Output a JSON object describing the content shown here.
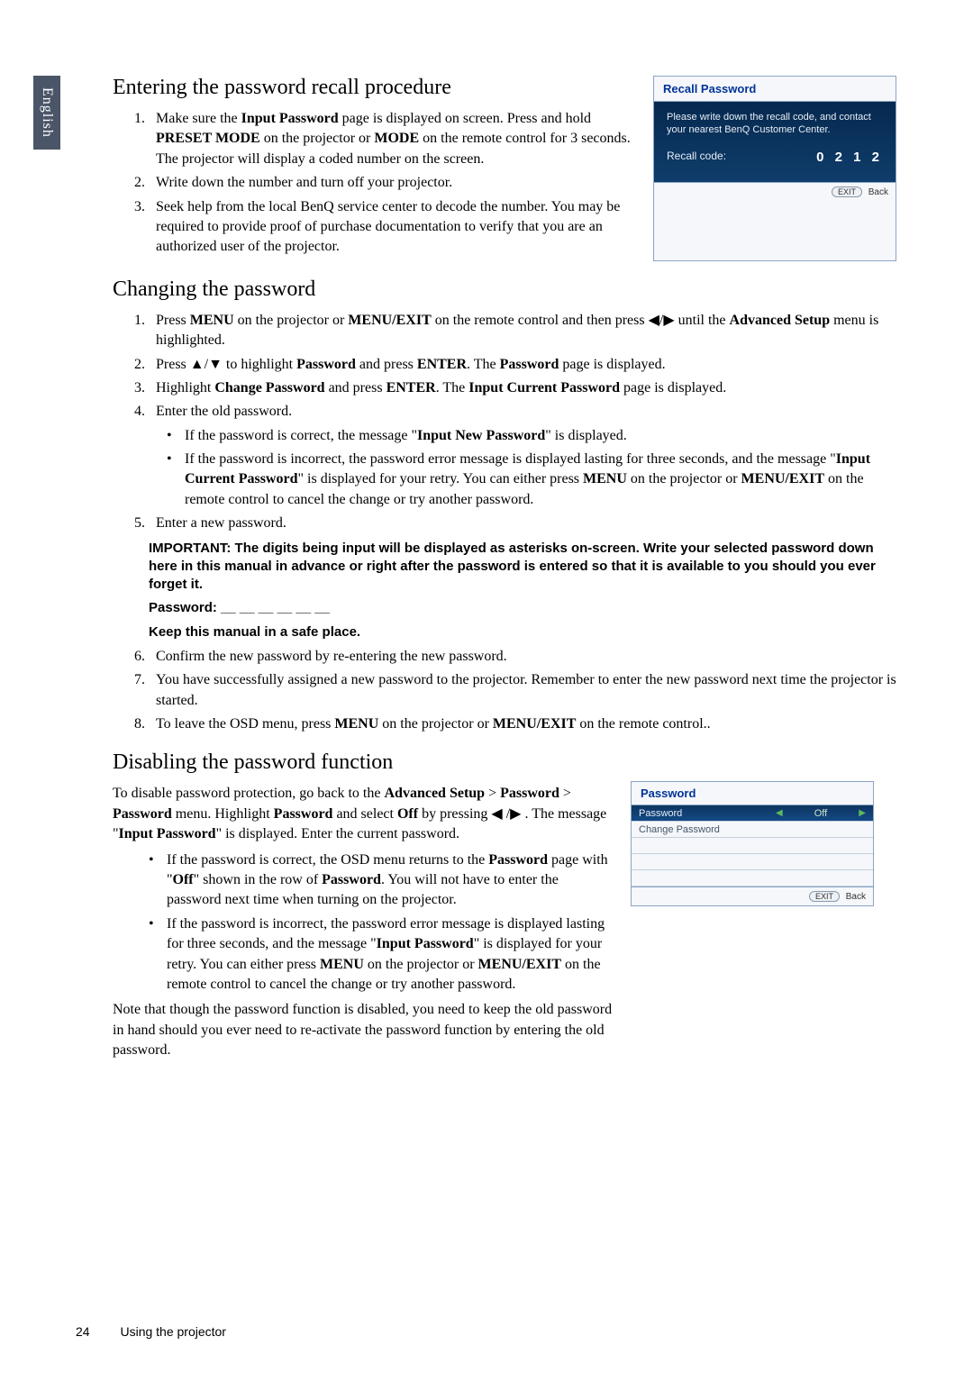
{
  "side_tab": "English",
  "sections": {
    "recall": {
      "heading": "Entering the password recall procedure",
      "items": [
        "Make sure the <b>Input Password</b> page is displayed on screen. Press and hold <b>PRESET MODE</b> on the projector or <b>MODE</b> on the remote control for 3 seconds. The projector will display a coded number on the screen.",
        "Write down the number and turn off your projector.",
        "Seek help from the local BenQ service center to decode the number. You may be required to provide proof of purchase documentation to verify that you are an authorized user of the projector."
      ]
    },
    "changing": {
      "heading": "Changing the password",
      "items": [
        "Press <b>MENU</b> on the projector or <b>MENU/EXIT</b> on the remote control and then press ◀/▶ until the <b>Advanced Setup</b> menu is highlighted.",
        "Press ▲/▼ to highlight <b>Password</b> and press <b>ENTER</b>. The <b>Password</b> page is displayed.",
        "Highlight <b>Change Password</b> and press <b>ENTER</b>. The <b>Input Current Password</b> page is displayed.",
        "Enter the old password."
      ],
      "bullets4": [
        "If the password is correct, the message \"<b>Input New Password</b>\" is displayed.",
        "If the password is incorrect, the password error message is displayed lasting for three seconds, and the message \"<b>Input Current Password</b>\" is displayed for your retry. You can either press <b>MENU</b> on the projector or <b>MENU/EXIT</b> on the remote control to cancel the change or try another password."
      ],
      "item5": "Enter a new password.",
      "important": "IMPORTANT: The digits being input will be displayed as asterisks on-screen. Write your selected password down here in this manual in advance or right after the password is entered so that it is available to you should you ever forget it.",
      "password_line": "Password: __ __ __ __ __ __",
      "keep_line": "Keep this manual in a safe place.",
      "items678": [
        "Confirm the new password by re-entering the new password.",
        "You have successfully assigned a new password to the projector. Remember to enter the new password next time the projector is started.",
        "To leave the OSD menu, press <b>MENU</b> on the projector or <b>MENU/EXIT</b> on the remote control.."
      ]
    },
    "disabling": {
      "heading": "Disabling the password function",
      "para1": "To disable password protection, go back to the <b>Advanced Setup</b> > <b>Password</b> > <b>Password</b> menu. Highlight <b>Password</b> and select <b>Off</b> by pressing ◀ /▶ . The message \"<b>Input Password</b>\" is displayed. Enter the current password.",
      "bullets": [
        "If the password is correct, the OSD menu returns to the <b>Password</b> page with \"<b>Off</b>\" shown in the row of <b>Password</b>. You will not have to enter the password next time when turning on the projector.",
        "If the password is incorrect, the password error message is displayed lasting for three seconds, and the message \"<b>Input Password</b>\" is displayed for your retry. You can either press <b>MENU</b> on the projector or <b>MENU/EXIT</b> on the remote control to cancel the change or try another password."
      ],
      "note": "Note that though the password function is disabled, you need to keep the old password in hand should you ever need to re-activate the password function by entering the old password."
    }
  },
  "osd_recall": {
    "title": "Recall Password",
    "body_text": "Please write down the recall code, and contact your nearest BenQ Customer Center.",
    "label": "Recall code:",
    "code": "0 2 1 2",
    "exit": "EXIT",
    "back": "Back"
  },
  "osd_password": {
    "title": "Password",
    "row1_label": "Password",
    "row1_value": "Off",
    "row2_label": "Change Password",
    "exit": "EXIT",
    "back": "Back"
  },
  "footer": {
    "page": "24",
    "title": "Using the projector"
  },
  "colors": {
    "osd_border": "#8aa5c5",
    "osd_title_color": "#003399",
    "osd_body_bg_top": "#06294f",
    "osd_body_bg_bottom": "#0f3d6b",
    "side_tab_bg": "#4a5568"
  }
}
